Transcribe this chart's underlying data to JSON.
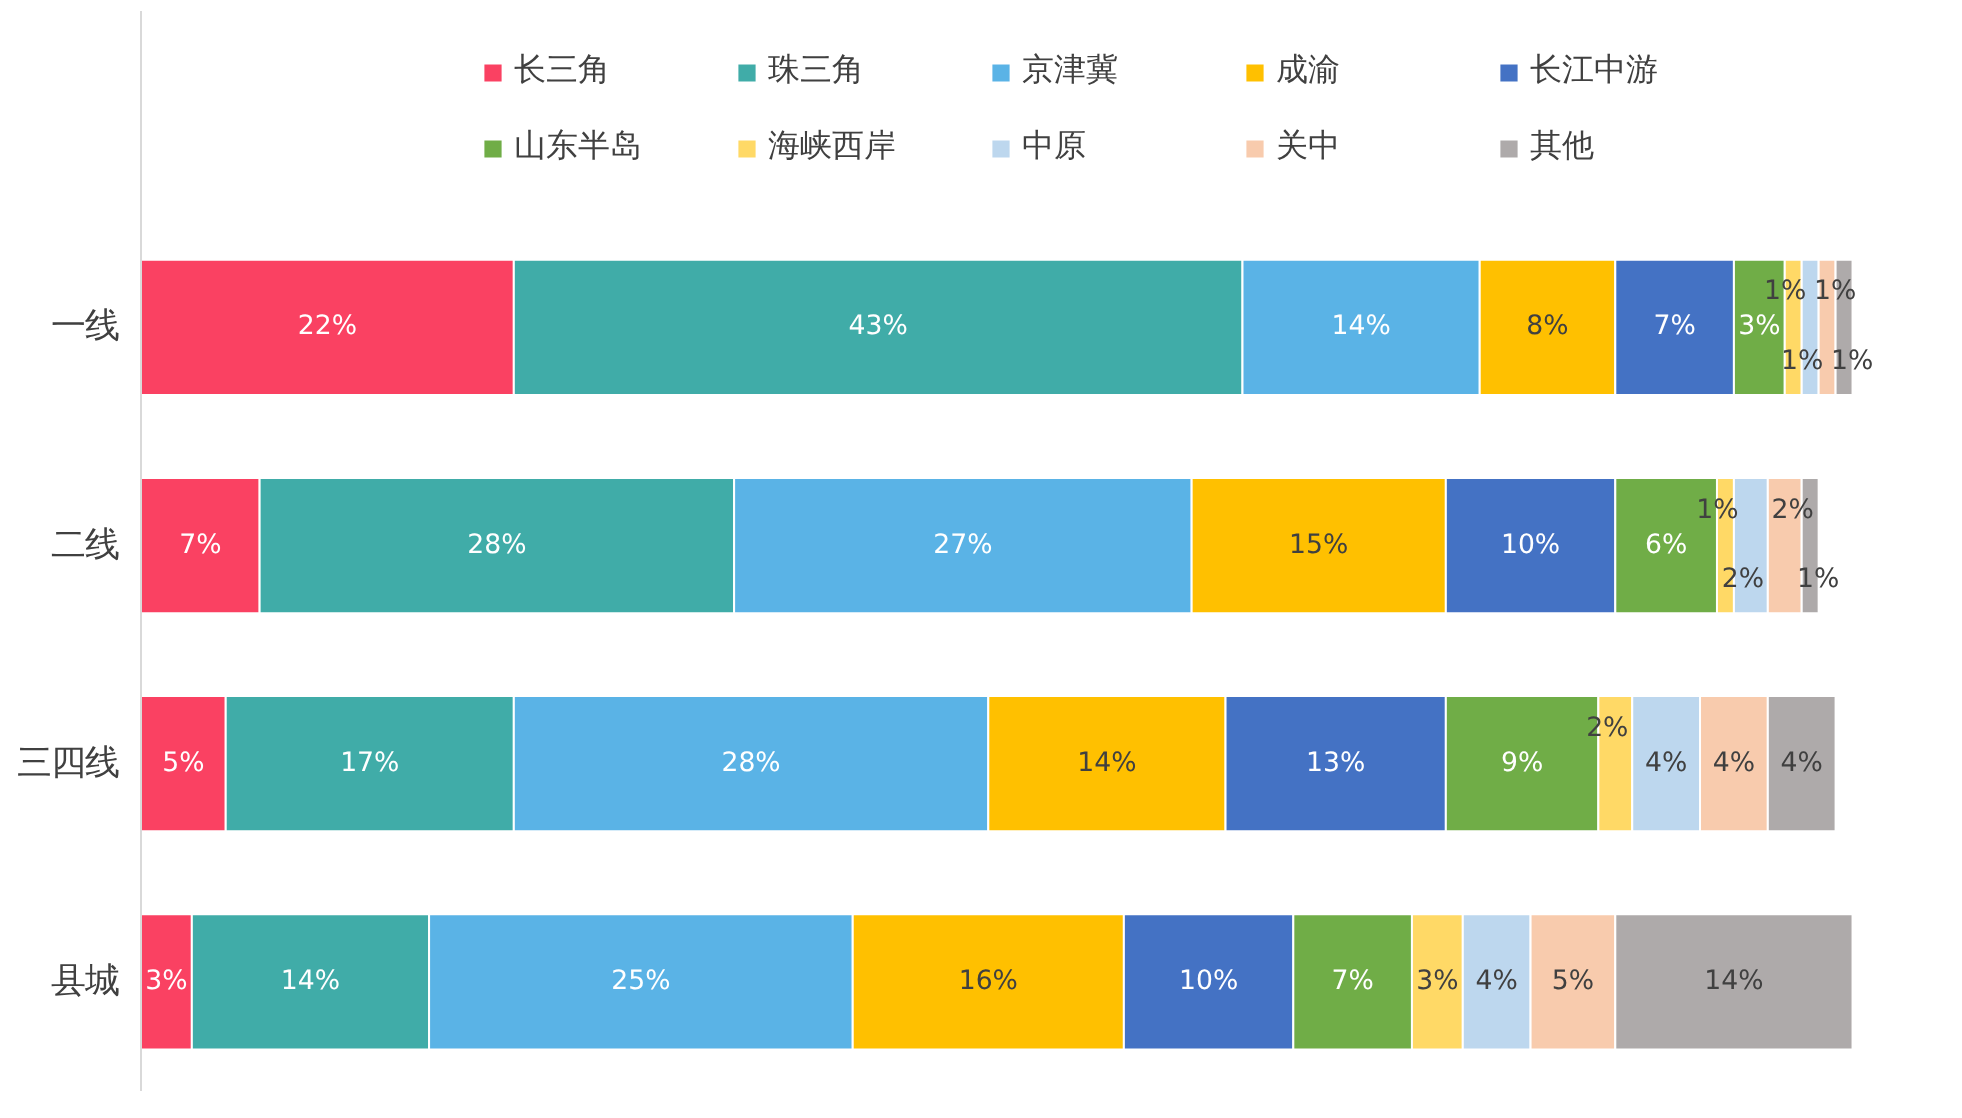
{
  "chart_data": {
    "type": "bar",
    "stacked": true,
    "orientation": "horizontal",
    "grid": false,
    "legend": "top",
    "tick_labels": "y",
    "categories": [
      "一线",
      "二线",
      "三四线",
      "县城"
    ],
    "series": [
      {
        "name": "长三角",
        "color": "#fa4162",
        "values": [
          22,
          7,
          5,
          3
        ],
        "value_labels": [
          "22%",
          "7%",
          "5%",
          "3%"
        ]
      },
      {
        "name": "珠三角",
        "color": "#40aca8",
        "values": [
          43,
          28,
          17,
          14
        ],
        "value_labels": [
          "43%",
          "28%",
          "17%",
          "14%"
        ]
      },
      {
        "name": "京津冀",
        "color": "#5ab3e6",
        "values": [
          14,
          27,
          28,
          25
        ],
        "value_labels": [
          "14%",
          "27%",
          "28%",
          "25%"
        ]
      },
      {
        "name": "成渝",
        "color": "#ffc000",
        "values": [
          8,
          15,
          14,
          16
        ],
        "value_labels": [
          "8%",
          "15%",
          "14%",
          "16%"
        ]
      },
      {
        "name": "长江中游",
        "color": "#4472c4",
        "values": [
          7,
          10,
          13,
          10
        ],
        "value_labels": [
          "7%",
          "10%",
          "13%",
          "10%"
        ]
      },
      {
        "name": "山东半岛",
        "color": "#70ad47",
        "values": [
          3,
          6,
          9,
          7
        ],
        "value_labels": [
          "3%",
          "6%",
          "9%",
          "7%"
        ]
      },
      {
        "name": "海峡西岸",
        "color": "#ffd966",
        "values": [
          1,
          1,
          2,
          3
        ],
        "value_labels": [
          "1%",
          "1%",
          "2%",
          "3%"
        ]
      },
      {
        "name": "中原",
        "color": "#bdd7ee",
        "values": [
          1,
          2,
          4,
          4
        ],
        "value_labels": [
          "1%",
          "2%",
          "4%",
          "4%"
        ]
      },
      {
        "name": "关中",
        "color": "#f8cbad",
        "values": [
          1,
          2,
          4,
          5
        ],
        "value_labels": [
          "1%",
          "2%",
          "4%",
          "5%"
        ]
      },
      {
        "name": "其他",
        "color": "#aeaaaa",
        "values": [
          1,
          1,
          4,
          14
        ],
        "value_labels": [
          "1%",
          "1%",
          "4%",
          "14%"
        ]
      }
    ]
  }
}
